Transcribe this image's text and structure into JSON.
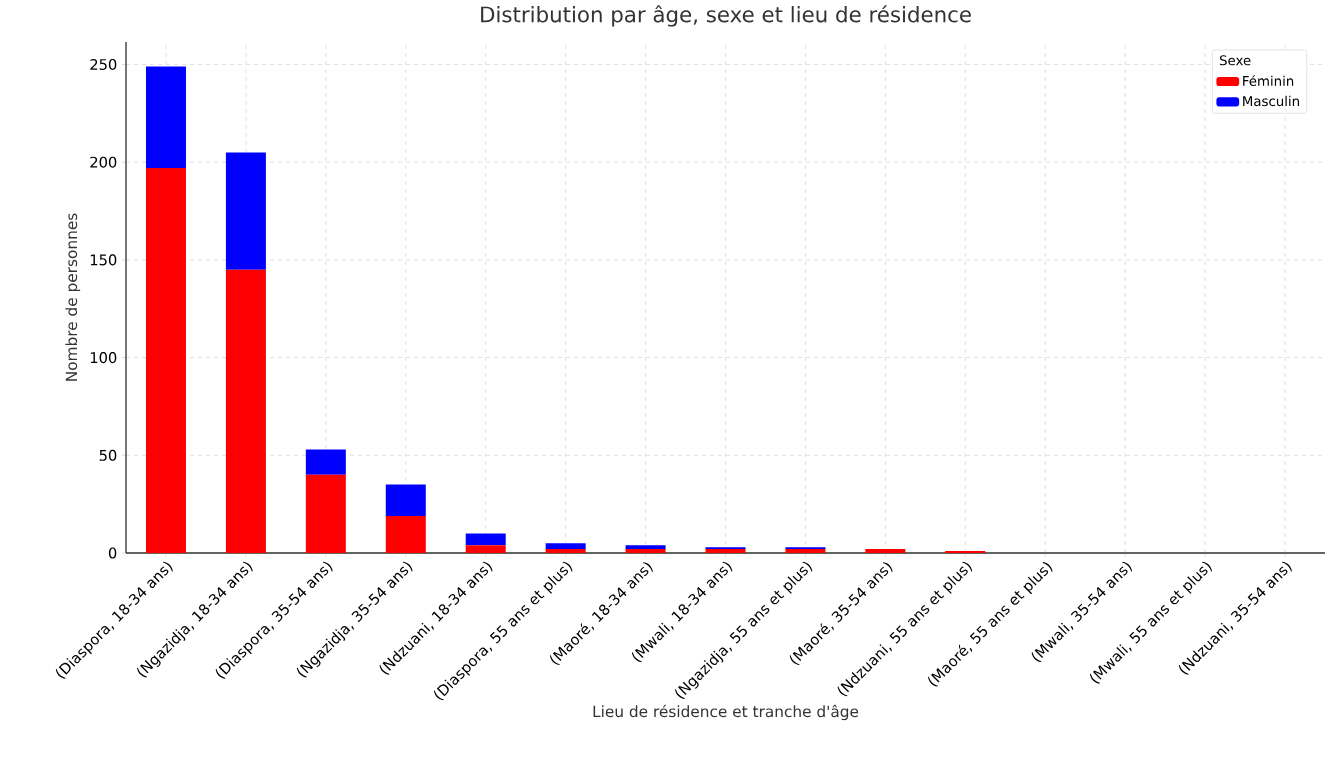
{
  "chart_data": {
    "type": "bar",
    "stacked": true,
    "title": "Distribution par âge, sexe et lieu de résidence",
    "xlabel": "Lieu de résidence et tranche d'âge",
    "ylabel": "Nombre de personnes",
    "legend_title": "Sexe",
    "legend": "top right",
    "grid": true,
    "categories": [
      "(Diaspora, 18-34 ans)",
      "(Ngazidja, 18-34 ans)",
      "(Diaspora, 35-54 ans)",
      "(Ngazidja, 35-54 ans)",
      "(Ndzuani, 18-34 ans)",
      "(Diaspora, 55 ans et plus)",
      "(Maoré, 18-34 ans)",
      "(Mwali, 18-34 ans)",
      "(Ngazidja, 55 ans et plus)",
      "(Maoré, 35-54 ans)",
      "(Ndzuani, 55 ans et plus)",
      "(Maoré, 55 ans et plus)",
      "(Mwali, 35-54 ans)",
      "(Mwali, 55 ans et plus)",
      "(Ndzuani, 35-54 ans)"
    ],
    "series": [
      {
        "name": "Féminin",
        "color": "#ff0000",
        "values": [
          197,
          145,
          40,
          19,
          4,
          2,
          2,
          2,
          2,
          2,
          1,
          0,
          0,
          0,
          0
        ]
      },
      {
        "name": "Masculin",
        "color": "#0000ff",
        "values": [
          52,
          60,
          13,
          16,
          6,
          3,
          2,
          1,
          1,
          0,
          0,
          0,
          0,
          0,
          0
        ]
      }
    ],
    "ylim": [
      0,
      261.5
    ],
    "yticks": [
      0,
      50,
      100,
      150,
      200,
      250
    ]
  }
}
